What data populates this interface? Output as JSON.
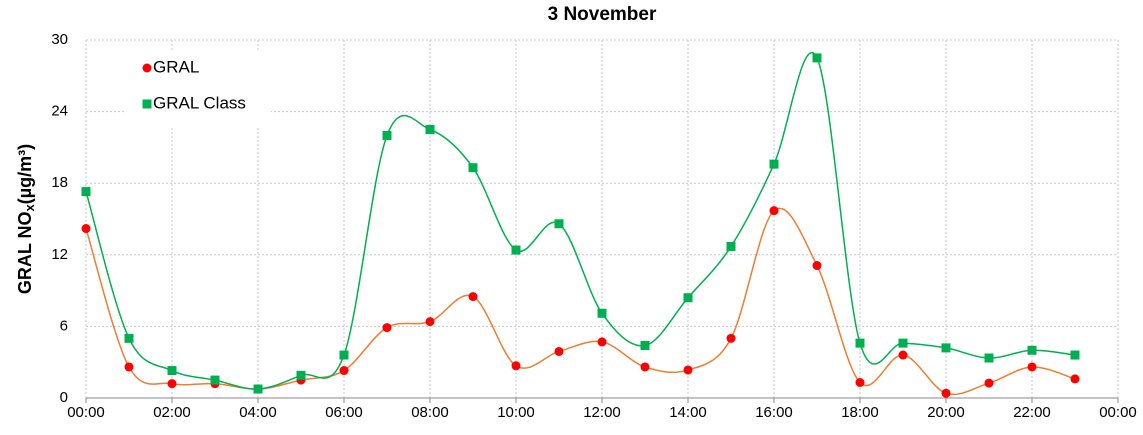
{
  "chart_data": {
    "type": "line",
    "title": "3 November",
    "ylabel": {
      "main": "GRAL NO",
      "sub": "x",
      "unit": "(µg/m³)"
    },
    "x": [
      0,
      1,
      2,
      3,
      4,
      5,
      6,
      7,
      8,
      9,
      10,
      11,
      12,
      13,
      14,
      15,
      16,
      17,
      18,
      19,
      20,
      21,
      22,
      23
    ],
    "series": [
      {
        "name": "GRAL",
        "color": "#ff0000",
        "line_color": "#ed7d31",
        "marker": "circle",
        "values": [
          14.2,
          2.6,
          1.2,
          1.2,
          0.75,
          1.5,
          2.3,
          5.9,
          6.4,
          8.5,
          2.7,
          3.9,
          4.7,
          2.6,
          2.35,
          5.0,
          15.7,
          11.1,
          1.3,
          3.6,
          0.4,
          1.25,
          2.6,
          1.6
        ]
      },
      {
        "name": "GRAL Class",
        "color": "#00b050",
        "line_color": "#00b050",
        "marker": "square",
        "values": [
          17.3,
          5.0,
          2.3,
          1.5,
          0.75,
          1.9,
          3.6,
          22.0,
          22.5,
          19.3,
          12.4,
          14.6,
          7.1,
          4.4,
          8.4,
          12.7,
          19.6,
          28.5,
          4.6,
          4.6,
          4.2,
          3.35,
          4.0,
          3.6
        ]
      }
    ],
    "xlim": [
      0,
      24
    ],
    "xticks": [
      {
        "value": 0,
        "label": "00:00"
      },
      {
        "value": 2,
        "label": "02:00"
      },
      {
        "value": 4,
        "label": "04:00"
      },
      {
        "value": 6,
        "label": "06:00"
      },
      {
        "value": 8,
        "label": "08:00"
      },
      {
        "value": 10,
        "label": "10:00"
      },
      {
        "value": 12,
        "label": "12:00"
      },
      {
        "value": 14,
        "label": "14:00"
      },
      {
        "value": 16,
        "label": "16:00"
      },
      {
        "value": 18,
        "label": "18:00"
      },
      {
        "value": 20,
        "label": "20:00"
      },
      {
        "value": 22,
        "label": "22:00"
      },
      {
        "value": 24,
        "label": "00:00"
      }
    ],
    "ylim": [
      0,
      30
    ],
    "yticks": [
      0,
      6,
      12,
      18,
      24,
      30
    ],
    "grid": true,
    "smooth": true,
    "legend": "upper-left"
  }
}
